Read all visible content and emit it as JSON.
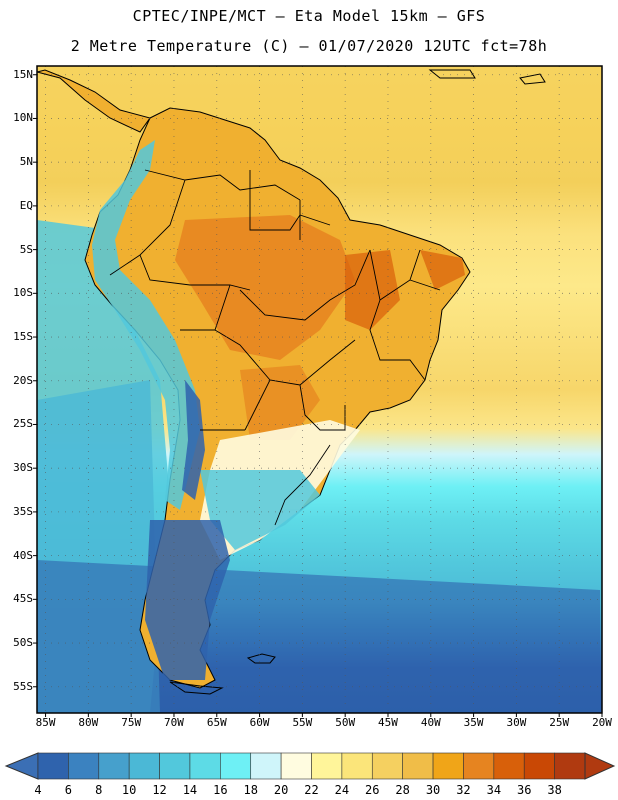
{
  "header": {
    "line1": "CPTEC/INPE/MCT –  Eta Model 15km – GFS",
    "line2": "2 Metre Temperature (C) – 01/07/2020 12UTC fct=78h"
  },
  "map": {
    "lat_range": [
      -58,
      16
    ],
    "lon_range": [
      -86,
      -20
    ],
    "lat_labels": [
      "15N",
      "10N",
      "5N",
      "EQ",
      "5S",
      "10S",
      "15S",
      "20S",
      "25S",
      "30S",
      "35S",
      "40S",
      "45S",
      "50S",
      "55S"
    ],
    "lat_values": [
      15,
      10,
      5,
      0,
      -5,
      -10,
      -15,
      -20,
      -25,
      -30,
      -35,
      -40,
      -45,
      -50,
      -55
    ],
    "lon_labels": [
      "85W",
      "80W",
      "75W",
      "70W",
      "65W",
      "60W",
      "55W",
      "50W",
      "45W",
      "40W",
      "35W",
      "30W",
      "25W",
      "20W"
    ],
    "lon_values": [
      -85,
      -80,
      -75,
      -70,
      -65,
      -60,
      -55,
      -50,
      -45,
      -40,
      -35,
      -30,
      -25,
      -20
    ]
  },
  "colorbar": {
    "labels": [
      "4",
      "6",
      "8",
      "10",
      "12",
      "14",
      "16",
      "18",
      "20",
      "22",
      "24",
      "26",
      "28",
      "30",
      "32",
      "34",
      "36",
      "38"
    ],
    "low_color": "#3b6fb5",
    "high_color": "#b03a10",
    "colors": [
      "#2f63ad",
      "#3b82c0",
      "#46a0cc",
      "#4bb8d6",
      "#52c8dc",
      "#5ddbe6",
      "#6ef0f5",
      "#cff5fa",
      "#fffce0",
      "#fff59a",
      "#fbe57a",
      "#f5d060",
      "#f0bd48",
      "#f0a518",
      "#e68420",
      "#d8600a",
      "#c94805",
      "#b03a10"
    ]
  }
}
